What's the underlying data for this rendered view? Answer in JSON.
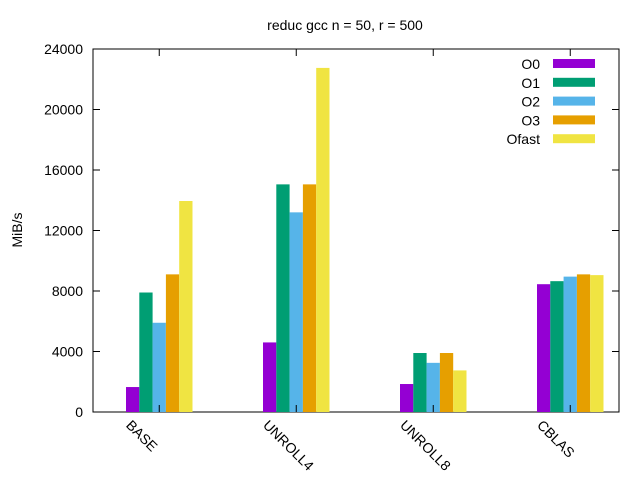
{
  "chart_data": {
    "type": "bar",
    "title": "reduc gcc n = 50, r = 500",
    "xlabel": "",
    "ylabel": "MiB/s",
    "ylim": [
      0,
      24000
    ],
    "yticks": [
      0,
      4000,
      8000,
      12000,
      16000,
      20000,
      24000
    ],
    "grid": false,
    "legend_position": "top-right",
    "categories": [
      "BASE",
      "UNROLL4",
      "UNROLL8",
      "CBLAS"
    ],
    "series": [
      {
        "name": "O0",
        "color": "#9400d3",
        "values": [
          1650,
          4600,
          1850,
          8450
        ]
      },
      {
        "name": "O1",
        "color": "#009e73",
        "values": [
          7900,
          15050,
          3900,
          8650
        ]
      },
      {
        "name": "O2",
        "color": "#56b4e9",
        "values": [
          5900,
          13200,
          3250,
          8950
        ]
      },
      {
        "name": "O3",
        "color": "#e69f00",
        "values": [
          9100,
          15050,
          3900,
          9100
        ]
      },
      {
        "name": "Ofast",
        "color": "#f0e442",
        "values": [
          13950,
          22750,
          2750,
          9050
        ]
      }
    ]
  }
}
